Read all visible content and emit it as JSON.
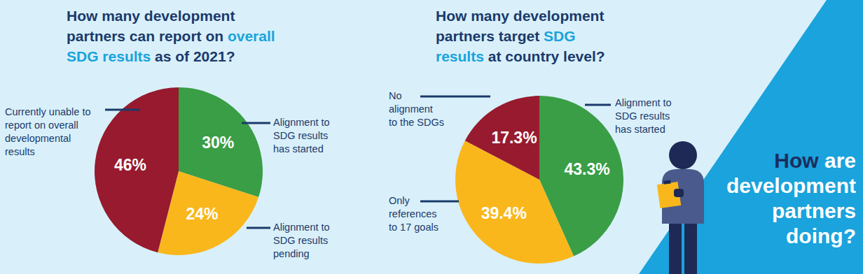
{
  "chart_data": [
    {
      "type": "pie",
      "title": "How many development partners can report on overall SDG results as of 2021?",
      "categories": [
        "Alignment to SDG results has started",
        "Alignment to SDG results pending",
        "Currently unable to report on overall developmental results"
      ],
      "values": [
        30,
        24,
        46
      ],
      "value_labels": [
        "30%",
        "24%",
        "46%"
      ],
      "colors": [
        "#3a9e46",
        "#f9b71c",
        "#971a2e"
      ],
      "data_labels": true
    },
    {
      "type": "pie",
      "title": "How many development partners target SDG results at country level?",
      "categories": [
        "Alignment to SDG results has started",
        "Only references to 17 goals",
        "No alignment to the SDGs"
      ],
      "values": [
        43.3,
        39.4,
        17.3
      ],
      "value_labels": [
        "43.3%",
        "39.4%",
        "17.3%"
      ],
      "colors": [
        "#3a9e46",
        "#f9b71c",
        "#971a2e"
      ],
      "data_labels": true
    }
  ],
  "side_panel": {
    "lines": [
      "How are",
      "development",
      "partners",
      "doing?"
    ]
  }
}
